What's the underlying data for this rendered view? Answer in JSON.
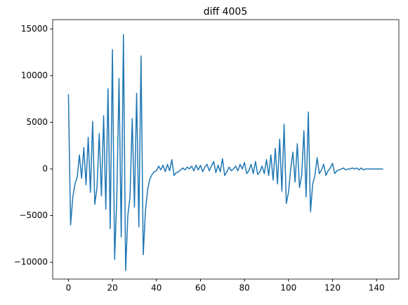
{
  "chart_data": {
    "type": "line",
    "title": "diff 4005",
    "x": [
      0,
      1,
      2,
      3,
      4,
      5,
      6,
      7,
      8,
      9,
      10,
      11,
      12,
      13,
      14,
      15,
      16,
      17,
      18,
      19,
      20,
      21,
      22,
      23,
      24,
      25,
      26,
      27,
      28,
      29,
      30,
      31,
      32,
      33,
      34,
      35,
      36,
      37,
      38,
      39,
      40,
      41,
      42,
      43,
      44,
      45,
      46,
      47,
      48,
      49,
      50,
      51,
      52,
      53,
      54,
      55,
      56,
      57,
      58,
      59,
      60,
      61,
      62,
      63,
      64,
      65,
      66,
      67,
      68,
      69,
      70,
      71,
      72,
      73,
      74,
      75,
      76,
      77,
      78,
      79,
      80,
      81,
      82,
      83,
      84,
      85,
      86,
      87,
      88,
      89,
      90,
      91,
      92,
      93,
      94,
      95,
      96,
      97,
      98,
      99,
      100,
      101,
      102,
      103,
      104,
      105,
      106,
      107,
      108,
      109,
      110,
      111,
      112,
      113,
      114,
      115,
      116,
      117,
      118,
      119,
      120,
      121,
      122,
      123,
      124,
      125,
      126,
      127,
      128,
      129,
      130,
      131,
      132,
      133,
      134,
      135,
      136,
      137,
      138,
      139,
      140,
      141,
      142,
      143
    ],
    "series": [
      {
        "color": "#1f77b4",
        "values": [
          8000,
          -6000,
          -3000,
          -1600,
          -900,
          1500,
          -1000,
          2300,
          -1700,
          3400,
          -2500,
          5100,
          -3800,
          -2000,
          3800,
          -2900,
          5700,
          -4300,
          8600,
          -6400,
          12800,
          -9700,
          -3000,
          9700,
          -7300,
          14400,
          -10900,
          -5000,
          -3000,
          5400,
          -4100,
          8100,
          -6200,
          12100,
          -9200,
          -4500,
          -2200,
          -1100,
          -600,
          -300,
          -200,
          300,
          -100,
          400,
          -300,
          500,
          -200,
          1000,
          -700,
          -400,
          -300,
          -100,
          100,
          -100,
          200,
          0,
          300,
          -200,
          400,
          -100,
          400,
          -300,
          200,
          500,
          -200,
          300,
          800,
          -400,
          400,
          -300,
          1100,
          -700,
          -300,
          200,
          -200,
          0,
          300,
          -200,
          500,
          0,
          700,
          -500,
          -200,
          500,
          -500,
          800,
          -600,
          -300,
          300,
          -500,
          1000,
          -700,
          1500,
          -1200,
          2200,
          -1600,
          3200,
          -2400,
          4800,
          -3700,
          -2500,
          0,
          1800,
          -1400,
          2700,
          -2000,
          -700,
          4100,
          -3000,
          6100,
          -4600,
          -1600,
          -700,
          1200,
          -500,
          -100,
          500,
          -700,
          -200,
          100,
          600,
          -500,
          -200,
          -100,
          0,
          100,
          -100,
          0,
          0,
          100,
          0,
          100,
          -100,
          100,
          -100,
          0,
          0,
          0,
          0,
          0,
          0,
          0,
          0,
          0
        ]
      }
    ],
    "xlim": [
      -7.15,
      150.15
    ],
    "xticks": [
      0,
      20,
      40,
      60,
      80,
      100,
      120,
      140
    ],
    "ylim": [
      -11800,
      16000
    ],
    "yticks": [
      {
        "value": -10000,
        "label": "−10000"
      },
      {
        "value": -5000,
        "label": "−5000"
      },
      0,
      5000,
      10000,
      15000
    ],
    "grid": false
  }
}
